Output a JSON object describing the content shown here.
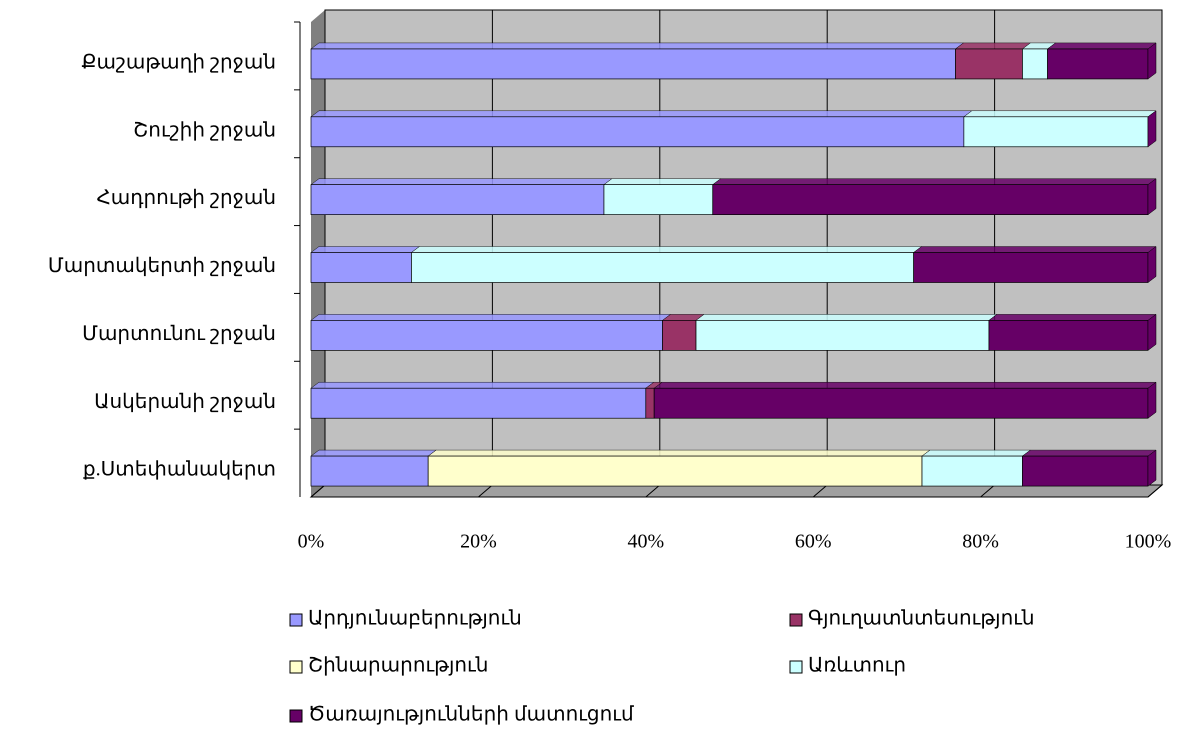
{
  "chart_data": {
    "type": "stacked_bar_horizontal",
    "categories": [
      "Քաշաթաղի շրջան",
      "Շուշիի շրջան",
      "Հադրութի շրջան",
      "Մարտակերտի շրջան",
      "Մարտունու շրջան",
      "Ասկերանի շրջան",
      "ք.Ստեփանակերտ"
    ],
    "series": [
      {
        "name": "Արդյունաբերություն",
        "color": "#9999ff",
        "values": [
          77,
          78,
          35,
          12,
          42,
          40,
          14
        ]
      },
      {
        "name": "Գյուղատնտեսություն",
        "color": "#993366",
        "values": [
          8,
          0,
          0,
          0,
          4,
          1,
          0
        ]
      },
      {
        "name": "Շինարարություն",
        "color": "#ffffcc",
        "values": [
          0,
          0,
          0,
          0,
          0,
          0,
          59
        ]
      },
      {
        "name": "Առևտուր",
        "color": "#ccffff",
        "values": [
          3,
          22,
          13,
          60,
          35,
          0,
          12
        ]
      },
      {
        "name": "Ծառայությունների մատուցում",
        "color": "#660066",
        "values": [
          12,
          0,
          52,
          28,
          19,
          59,
          15
        ]
      }
    ],
    "xlim": [
      0,
      100
    ],
    "xticks": [
      {
        "value": 0,
        "label": "0%"
      },
      {
        "value": 20,
        "label": "20%"
      },
      {
        "value": 40,
        "label": "40%"
      },
      {
        "value": 60,
        "label": "60%"
      },
      {
        "value": 80,
        "label": "80%"
      },
      {
        "value": 100,
        "label": "100%"
      }
    ],
    "grid": true
  }
}
